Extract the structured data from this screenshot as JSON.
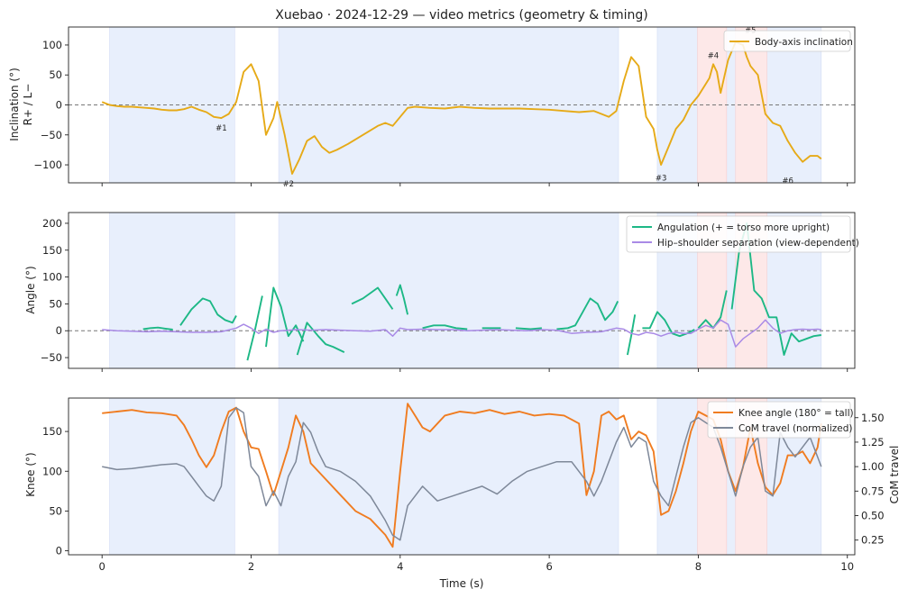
{
  "figure": {
    "title": "Xuebao · 2024-12-29 — video metrics (geometry & timing)",
    "xlabel": "Time (s)"
  },
  "colors": {
    "inclination": "#e6aa17",
    "angulation": "#1db886",
    "hip_shoulder": "#a98ae6",
    "knee": "#f07c20",
    "com": "#7e8899",
    "shade_blue": "#e8effc",
    "shade_red": "#fde8e8"
  },
  "chart_data": [
    {
      "type": "line",
      "ylabel": "Inclination (°)",
      "ylabel2": "R+ / L−",
      "xlim": [
        -0.45,
        10.1
      ],
      "ylim": [
        -130,
        130
      ],
      "xticks": [
        0,
        2,
        4,
        6,
        8,
        10
      ],
      "yticks": [
        -100,
        -50,
        0,
        50,
        100
      ],
      "zero_line": true,
      "legend": "top-right",
      "shaded_blue": [
        [
          0.1,
          1.78
        ],
        [
          2.37,
          6.93
        ],
        [
          7.45,
          9.65
        ]
      ],
      "shaded_red": [
        [
          7.99,
          8.38
        ],
        [
          8.5,
          8.92
        ]
      ],
      "series": [
        {
          "name": "Body-axis inclination",
          "color_key": "inclination",
          "x": [
            0.0,
            0.1,
            0.2,
            0.3,
            0.4,
            0.5,
            0.6,
            0.7,
            0.8,
            0.9,
            1.0,
            1.1,
            1.2,
            1.3,
            1.4,
            1.5,
            1.6,
            1.7,
            1.8,
            1.9,
            2.0,
            2.1,
            2.2,
            2.3,
            2.35,
            2.45,
            2.55,
            2.65,
            2.75,
            2.85,
            2.95,
            3.05,
            3.15,
            3.3,
            3.5,
            3.7,
            3.8,
            3.9,
            4.0,
            4.1,
            4.2,
            4.4,
            4.6,
            4.8,
            5.0,
            5.2,
            5.4,
            5.6,
            5.8,
            6.0,
            6.2,
            6.4,
            6.6,
            6.7,
            6.8,
            6.9,
            7.0,
            7.1,
            7.2,
            7.3,
            7.4,
            7.45,
            7.5,
            7.6,
            7.7,
            7.8,
            7.9,
            8.0,
            8.1,
            8.15,
            8.2,
            8.25,
            8.3,
            8.4,
            8.5,
            8.6,
            8.65,
            8.7,
            8.8,
            8.9,
            9.0,
            9.1,
            9.2,
            9.3,
            9.4,
            9.5,
            9.6,
            9.65
          ],
          "values": [
            5,
            0,
            -2,
            -3,
            -3,
            -4,
            -5,
            -6,
            -8,
            -9,
            -9,
            -7,
            -3,
            -8,
            -12,
            -20,
            -22,
            -15,
            5,
            55,
            68,
            40,
            -50,
            -22,
            5,
            -50,
            -115,
            -90,
            -60,
            -52,
            -70,
            -80,
            -75,
            -65,
            -50,
            -35,
            -30,
            -35,
            -20,
            -5,
            -3,
            -5,
            -6,
            -3,
            -5,
            -6,
            -6,
            -6,
            -7,
            -8,
            -10,
            -12,
            -10,
            -15,
            -20,
            -10,
            40,
            80,
            65,
            -20,
            -40,
            -75,
            -100,
            -70,
            -40,
            -25,
            0,
            15,
            35,
            45,
            68,
            55,
            20,
            75,
            105,
            100,
            80,
            65,
            50,
            -15,
            -30,
            -35,
            -60,
            -80,
            -95,
            -85,
            -85,
            -90
          ]
        }
      ],
      "events": [
        {
          "label": "#1",
          "x": 1.6,
          "y": -22
        },
        {
          "label": "#2",
          "x": 2.5,
          "y": -115
        },
        {
          "label": "#3",
          "x": 7.5,
          "y": -105
        },
        {
          "label": "#4",
          "x": 8.2,
          "y": 68
        },
        {
          "label": "#5",
          "x": 8.7,
          "y": 110
        },
        {
          "label": "#6",
          "x": 9.2,
          "y": -110
        }
      ]
    },
    {
      "type": "line",
      "ylabel": "Angle (°)",
      "xlim": [
        -0.45,
        10.1
      ],
      "ylim": [
        -70,
        220
      ],
      "xticks": [
        0,
        2,
        4,
        6,
        8,
        10
      ],
      "yticks": [
        -50,
        0,
        50,
        100,
        150,
        200
      ],
      "zero_line": true,
      "legend": "top-right",
      "shaded_blue": [
        [
          0.1,
          1.78
        ],
        [
          2.37,
          6.93
        ],
        [
          7.45,
          9.65
        ]
      ],
      "shaded_red": [
        [
          7.99,
          8.38
        ],
        [
          8.5,
          8.92
        ]
      ],
      "series": [
        {
          "name": "Angulation (+ = torso more upright)",
          "color_key": "angulation",
          "segments": [
            {
              "x": [
                0.55,
                0.65,
                0.75,
                0.85,
                0.95
              ],
              "values": [
                3,
                5,
                6,
                4,
                2
              ]
            },
            {
              "x": [
                1.05,
                1.2,
                1.35,
                1.45,
                1.55,
                1.65,
                1.75,
                1.8
              ],
              "values": [
                10,
                40,
                60,
                55,
                30,
                20,
                15,
                28
              ]
            },
            {
              "x": [
                1.95,
                2.05,
                2.15
              ],
              "values": [
                -55,
                0,
                65
              ]
            },
            {
              "x": [
                2.2,
                2.3,
                2.4,
                2.5,
                2.6,
                2.7
              ],
              "values": [
                -30,
                80,
                45,
                -10,
                10,
                -20
              ]
            },
            {
              "x": [
                2.62,
                2.75,
                2.9,
                3.0,
                3.1,
                3.25
              ],
              "values": [
                -45,
                15,
                -10,
                -25,
                -30,
                -40
              ]
            },
            {
              "x": [
                3.35,
                3.5,
                3.6,
                3.7,
                3.8,
                3.9
              ],
              "values": [
                50,
                60,
                70,
                80,
                60,
                40
              ]
            },
            {
              "x": [
                3.95,
                4.0,
                4.05,
                4.1
              ],
              "values": [
                65,
                85,
                60,
                30
              ]
            },
            {
              "x": [
                4.3,
                4.45,
                4.6,
                4.75,
                4.9
              ],
              "values": [
                5,
                10,
                10,
                5,
                3
              ]
            },
            {
              "x": [
                5.1,
                5.3,
                5.35
              ],
              "values": [
                5,
                5,
                5
              ]
            },
            {
              "x": [
                5.55,
                5.75,
                5.9
              ],
              "values": [
                5,
                3,
                5
              ]
            },
            {
              "x": [
                6.1,
                6.25,
                6.35,
                6.45,
                6.55,
                6.65,
                6.75,
                6.85,
                6.92
              ],
              "values": [
                3,
                5,
                10,
                35,
                60,
                50,
                20,
                35,
                55
              ]
            },
            {
              "x": [
                7.05,
                7.1,
                7.15
              ],
              "values": [
                -45,
                -10,
                30
              ]
            },
            {
              "x": [
                7.25,
                7.35,
                7.45,
                7.55,
                7.65,
                7.75,
                7.85,
                7.95
              ],
              "values": [
                5,
                5,
                35,
                20,
                -5,
                -10,
                -5,
                2
              ]
            },
            {
              "x": [
                8.0,
                8.1,
                8.2,
                8.3,
                8.38
              ],
              "values": [
                5,
                20,
                5,
                25,
                75
              ]
            },
            {
              "x": [
                8.45,
                8.55,
                8.65,
                8.75,
                8.85,
                8.95,
                9.05,
                9.15,
                9.25,
                9.35,
                9.45,
                9.55,
                9.65
              ],
              "values": [
                40,
                150,
                200,
                75,
                60,
                25,
                25,
                -45,
                -5,
                -20,
                -15,
                -10,
                -8
              ]
            }
          ]
        },
        {
          "name": "Hip–shoulder separation (view-dependent)",
          "color_key": "hip_shoulder",
          "x": [
            0.0,
            0.2,
            0.4,
            0.6,
            0.8,
            1.0,
            1.2,
            1.4,
            1.6,
            1.8,
            1.9,
            2.0,
            2.1,
            2.2,
            2.3,
            2.4,
            2.6,
            2.8,
            3.0,
            3.2,
            3.4,
            3.6,
            3.8,
            3.9,
            4.0,
            4.1,
            4.3,
            4.5,
            4.7,
            4.9,
            5.1,
            5.3,
            5.5,
            5.7,
            5.9,
            6.1,
            6.3,
            6.5,
            6.7,
            6.9,
            7.0,
            7.1,
            7.2,
            7.3,
            7.4,
            7.5,
            7.6,
            7.7,
            7.8,
            7.9,
            8.0,
            8.1,
            8.2,
            8.3,
            8.4,
            8.5,
            8.6,
            8.7,
            8.8,
            8.9,
            9.0,
            9.1,
            9.2,
            9.3,
            9.4,
            9.5,
            9.6,
            9.65
          ],
          "values": [
            2,
            0,
            -1,
            -2,
            -1,
            -2,
            -3,
            -3,
            -2,
            5,
            12,
            5,
            -5,
            3,
            -3,
            0,
            2,
            1,
            2,
            1,
            0,
            -1,
            2,
            -10,
            5,
            2,
            3,
            2,
            2,
            0,
            1,
            2,
            1,
            0,
            2,
            1,
            -5,
            -3,
            -2,
            5,
            3,
            -5,
            -8,
            -3,
            -5,
            -10,
            -5,
            -3,
            -5,
            -5,
            3,
            10,
            5,
            20,
            12,
            -30,
            -15,
            -5,
            5,
            20,
            5,
            -5,
            0,
            2,
            3,
            2,
            3,
            2
          ]
        }
      ]
    },
    {
      "type": "line",
      "ylabel": "Knee (°)",
      "ylabel_right": "CoM travel",
      "xlim": [
        -0.45,
        10.1
      ],
      "ylim": [
        -5,
        192
      ],
      "ylim_right": [
        0.1,
        1.7
      ],
      "xticks": [
        0,
        2,
        4,
        6,
        8,
        10
      ],
      "yticks": [
        0,
        50,
        100,
        150
      ],
      "yticks_right": [
        0.25,
        0.5,
        0.75,
        1.0,
        1.25,
        1.5
      ],
      "legend": "top-right",
      "shaded_blue": [
        [
          0.1,
          1.78
        ],
        [
          2.37,
          6.93
        ],
        [
          7.45,
          9.65
        ]
      ],
      "shaded_red": [
        [
          7.99,
          8.38
        ],
        [
          8.5,
          8.92
        ]
      ],
      "series": [
        {
          "name": "Knee angle (180° = tall)",
          "color_key": "knee",
          "axis": "left",
          "x": [
            0.0,
            0.2,
            0.4,
            0.6,
            0.8,
            1.0,
            1.1,
            1.2,
            1.3,
            1.4,
            1.5,
            1.6,
            1.7,
            1.8,
            1.9,
            2.0,
            2.1,
            2.2,
            2.3,
            2.4,
            2.5,
            2.6,
            2.7,
            2.8,
            3.0,
            3.2,
            3.4,
            3.6,
            3.8,
            3.9,
            4.0,
            4.1,
            4.2,
            4.3,
            4.4,
            4.5,
            4.6,
            4.8,
            5.0,
            5.2,
            5.4,
            5.6,
            5.8,
            6.0,
            6.2,
            6.4,
            6.5,
            6.6,
            6.7,
            6.8,
            6.9,
            7.0,
            7.1,
            7.2,
            7.3,
            7.4,
            7.5,
            7.6,
            7.7,
            7.8,
            7.9,
            8.0,
            8.1,
            8.2,
            8.3,
            8.4,
            8.5,
            8.6,
            8.7,
            8.8,
            8.9,
            9.0,
            9.1,
            9.2,
            9.3,
            9.4,
            9.5,
            9.6,
            9.65
          ],
          "values": [
            173,
            175,
            177,
            174,
            173,
            170,
            158,
            140,
            120,
            105,
            120,
            150,
            175,
            180,
            150,
            130,
            128,
            100,
            70,
            100,
            130,
            170,
            150,
            110,
            90,
            70,
            50,
            40,
            20,
            5,
            100,
            185,
            170,
            155,
            150,
            160,
            170,
            175,
            173,
            177,
            172,
            175,
            170,
            172,
            170,
            160,
            70,
            100,
            170,
            175,
            165,
            170,
            140,
            150,
            145,
            125,
            45,
            50,
            75,
            110,
            150,
            175,
            170,
            165,
            140,
            100,
            75,
            105,
            155,
            110,
            80,
            70,
            85,
            120,
            120,
            125,
            110,
            130,
            160
          ]
        },
        {
          "name": "CoM travel (normalized)",
          "color_key": "com",
          "axis": "right",
          "x": [
            0.0,
            0.2,
            0.4,
            0.6,
            0.8,
            1.0,
            1.1,
            1.2,
            1.3,
            1.4,
            1.5,
            1.6,
            1.7,
            1.8,
            1.9,
            2.0,
            2.1,
            2.2,
            2.3,
            2.4,
            2.5,
            2.6,
            2.7,
            2.8,
            2.9,
            3.0,
            3.2,
            3.4,
            3.6,
            3.8,
            3.9,
            4.0,
            4.1,
            4.3,
            4.5,
            4.7,
            4.9,
            5.1,
            5.3,
            5.5,
            5.7,
            5.9,
            6.1,
            6.3,
            6.5,
            6.6,
            6.7,
            6.8,
            6.9,
            7.0,
            7.1,
            7.2,
            7.3,
            7.4,
            7.5,
            7.6,
            7.7,
            7.8,
            7.9,
            8.0,
            8.1,
            8.2,
            8.3,
            8.4,
            8.5,
            8.6,
            8.7,
            8.8,
            8.9,
            9.0,
            9.1,
            9.2,
            9.3,
            9.4,
            9.5,
            9.6,
            9.65
          ],
          "values": [
            1.0,
            0.97,
            0.98,
            1.0,
            1.02,
            1.03,
            1.0,
            0.9,
            0.8,
            0.7,
            0.65,
            0.8,
            1.5,
            1.6,
            1.55,
            1.0,
            0.9,
            0.6,
            0.75,
            0.6,
            0.9,
            1.05,
            1.45,
            1.35,
            1.15,
            1.0,
            0.95,
            0.85,
            0.7,
            0.45,
            0.3,
            0.25,
            0.6,
            0.8,
            0.65,
            0.7,
            0.75,
            0.8,
            0.72,
            0.85,
            0.95,
            1.0,
            1.05,
            1.05,
            0.85,
            0.7,
            0.85,
            1.05,
            1.25,
            1.4,
            1.2,
            1.3,
            1.25,
            0.85,
            0.7,
            0.6,
            0.9,
            1.2,
            1.45,
            1.5,
            1.45,
            1.4,
            1.2,
            0.95,
            0.7,
            1.0,
            1.2,
            1.3,
            0.75,
            0.7,
            1.35,
            1.2,
            1.1,
            1.2,
            1.3,
            1.1,
            1.0
          ]
        }
      ]
    }
  ]
}
